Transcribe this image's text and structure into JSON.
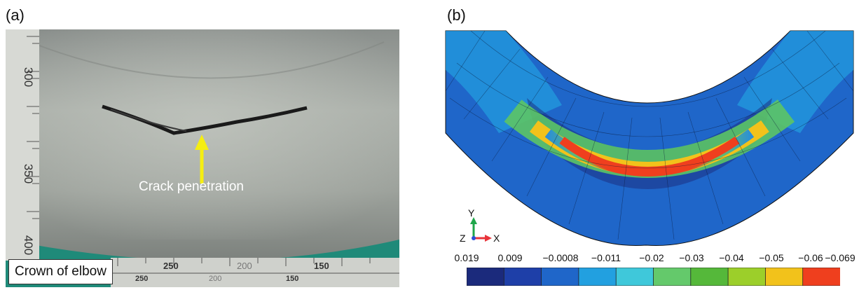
{
  "panels": {
    "a": {
      "label": "(a)"
    },
    "b": {
      "label": "(b)"
    }
  },
  "photo": {
    "annotation": "Crack penetration",
    "caption": "Crown of elbow",
    "ruler_vertical_labels": [
      "300",
      "350",
      "400"
    ],
    "ruler_horizontal_labels": [
      "250",
      "200",
      "150",
      "250",
      "200",
      "150"
    ],
    "arrow_color": "#f5ee12"
  },
  "fe_model": {
    "axes": {
      "y": "Y",
      "x": "X",
      "z": "Z"
    }
  },
  "legend": {
    "ticks": [
      "0.019",
      "0.009",
      "−0.0008",
      "−0.011",
      "−0.02",
      "−0.03",
      "−0.04",
      "−0.05",
      "−0.06",
      "−0.069"
    ],
    "colors": [
      "#1b2a7c",
      "#1e3fa8",
      "#1f66c9",
      "#22a0e0",
      "#3fc8da",
      "#64c96b",
      "#55b83a",
      "#9ccf2a",
      "#f2c21b",
      "#ef3f1e"
    ]
  }
}
